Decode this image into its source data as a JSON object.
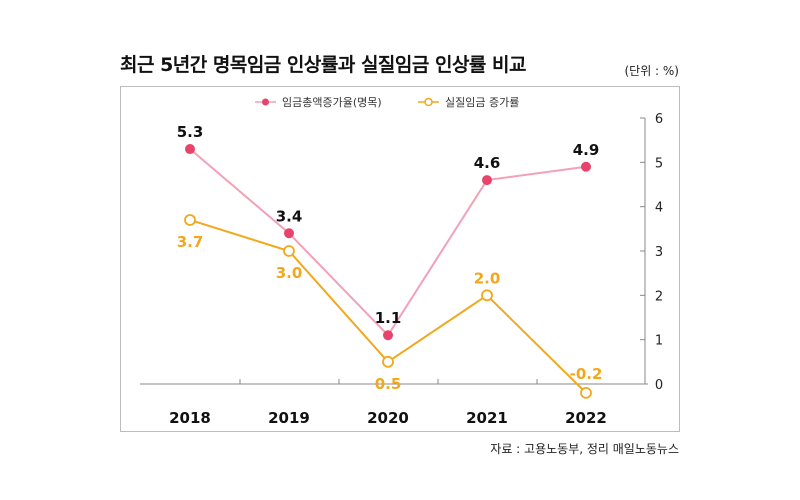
{
  "header": {
    "title": "최근 5년간 명목임금 인상률과 실질임금 인상률 비교",
    "unit": "(단위 : %)"
  },
  "footer": {
    "source": "자료 : 고용노동부, 정리 매일노동뉴스"
  },
  "colors": {
    "nominal": "#e8436a",
    "nominal_line": "#f2a1b8",
    "real": "#f2a81d",
    "axis": "#888888"
  },
  "chart_data": {
    "type": "line",
    "title": "최근 5년간 명목임금 인상률과 실질임금 인상률 비교",
    "x": [
      "2018",
      "2019",
      "2020",
      "2021",
      "2022"
    ],
    "ylim": [
      0,
      6
    ],
    "yticks": [
      "0",
      "1",
      "2",
      "3",
      "4",
      "5",
      "6"
    ],
    "y_axis_position": "right",
    "grid": false,
    "legend_position": "top-center",
    "series": [
      {
        "name": "임금총액증가율(명목)",
        "values": [
          5.3,
          3.4,
          1.1,
          4.6,
          4.9
        ],
        "labels": [
          "5.3",
          "3.4",
          "1.1",
          "4.6",
          "4.9"
        ],
        "marker": "filled-circle"
      },
      {
        "name": "실질임금 증가률",
        "values": [
          3.7,
          3.0,
          0.5,
          2.0,
          -0.2
        ],
        "labels": [
          "3.7",
          "3.0",
          "0.5",
          "2.0",
          "-0.2"
        ],
        "marker": "hollow-circle"
      }
    ]
  }
}
